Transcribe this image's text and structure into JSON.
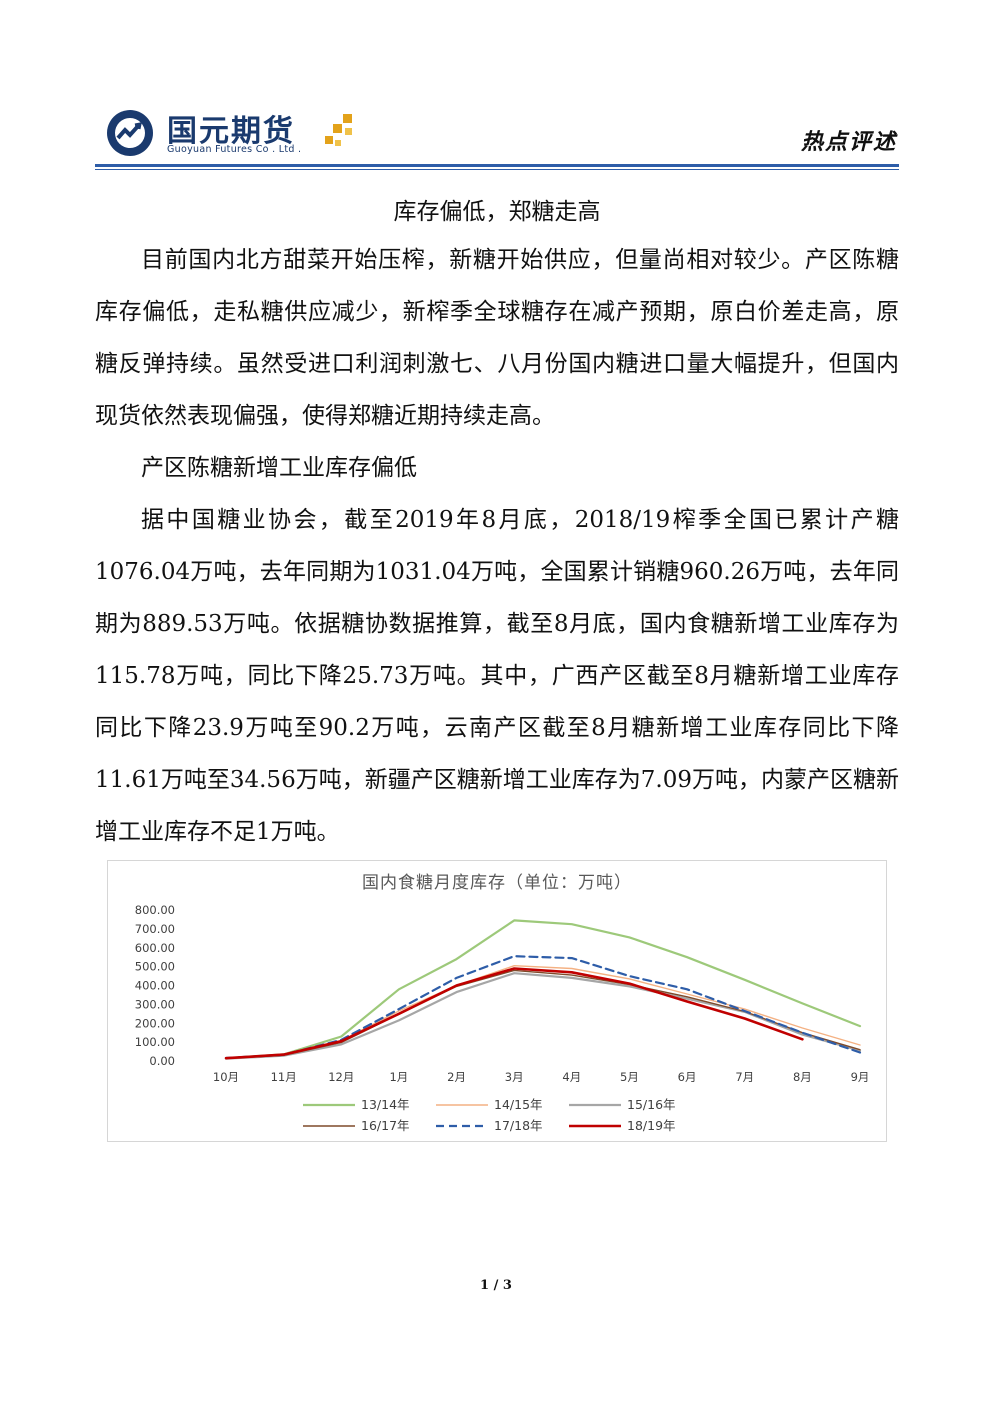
{
  "header": {
    "brand_cn": "国元期货",
    "brand_en": "Guoyuan Futures Co . Ltd .",
    "section_tag": "热点评述",
    "colors": {
      "brand": "#1a3a6e",
      "rule": "#2e5da8",
      "accent": "#e3a21a"
    }
  },
  "article": {
    "title": "库存偏低，郑糖走高",
    "p1": "目前国内北方甜菜开始压榨，新糖开始供应，但量尚相对较少。产区陈糖库存偏低，走私糖供应减少，新榨季全球糖存在减产预期，原白价差走高，原糖反弹持续。虽然受进口利润刺激七、八月份国内糖进口量大幅提升，但国内现货依然表现偏强，使得郑糖近期持续走高。",
    "p2": "产区陈糖新增工业库存偏低",
    "p3": "据中国糖业协会，截至2019年8月底，2018/19榨季全国已累计产糖1076.04万吨，去年同期为1031.04万吨，全国累计销糖960.26万吨，去年同期为889.53万吨。依据糖协数据推算，截至8月底，国内食糖新增工业库存为115.78万吨，同比下降25.73万吨。其中，广西产区截至8月糖新增工业库存同比下降23.9万吨至90.2万吨，云南产区截至8月糖新增工业库存同比下降11.61万吨至34.56万吨，新疆产区糖新增工业库存为7.09万吨，内蒙产区糖新增工业库存不足1万吨。"
  },
  "chart_data": {
    "type": "line",
    "title": "国内食糖月度库存（单位：万吨）",
    "categories": [
      "10月",
      "11月",
      "12月",
      "1月",
      "2月",
      "3月",
      "4月",
      "5月",
      "6月",
      "7月",
      "8月",
      "9月"
    ],
    "ylim": [
      0,
      800
    ],
    "yticks": [
      "800.00",
      "700.00",
      "600.00",
      "500.00",
      "400.00",
      "300.00",
      "200.00",
      "100.00",
      "0.00"
    ],
    "grid": false,
    "legend_position": "bottom",
    "series": [
      {
        "name": "13/14年",
        "color": "#9dc97a",
        "dash": false,
        "width": 2.2,
        "values": [
          15,
          35,
          130,
          380,
          540,
          745,
          725,
          655,
          550,
          430,
          305,
          185
        ]
      },
      {
        "name": "14/15年",
        "color": "#f4b183",
        "dash": false,
        "width": 1.4,
        "values": [
          15,
          32,
          108,
          265,
          400,
          505,
          490,
          435,
          355,
          275,
          175,
          85
        ]
      },
      {
        "name": "15/16年",
        "color": "#a6a6a6",
        "dash": false,
        "width": 2.2,
        "values": [
          12,
          28,
          88,
          215,
          365,
          465,
          440,
          395,
          330,
          260,
          140,
          55
        ]
      },
      {
        "name": "16/17年",
        "color": "#7f4a2a",
        "dash": false,
        "width": 1.4,
        "values": [
          14,
          30,
          98,
          248,
          395,
          480,
          455,
          405,
          340,
          262,
          150,
          60
        ]
      },
      {
        "name": "17/18年",
        "color": "#2e5da8",
        "dash": true,
        "width": 2.2,
        "values": [
          16,
          33,
          112,
          275,
          440,
          555,
          545,
          450,
          380,
          265,
          150,
          45
        ]
      },
      {
        "name": "18/19年",
        "color": "#c00000",
        "dash": false,
        "width": 2.6,
        "values": [
          15,
          34,
          105,
          250,
          400,
          490,
          470,
          410,
          315,
          225,
          115,
          null
        ]
      }
    ]
  },
  "footer": {
    "page": "1 / 3"
  }
}
